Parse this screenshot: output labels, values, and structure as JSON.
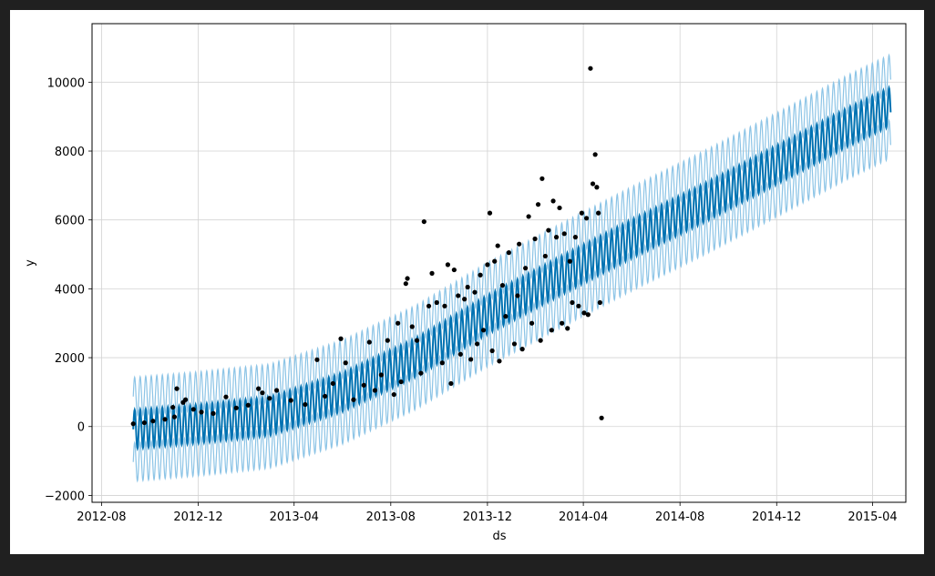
{
  "chart_data": {
    "type": "line",
    "title": "",
    "xlabel": "ds",
    "ylabel": "y",
    "grid": true,
    "legend": "none",
    "xlim": [
      "2012-07-20",
      "2015-05-13"
    ],
    "ylim": [
      -2200,
      11700
    ],
    "x_ticks": [
      "2012-08",
      "2012-12",
      "2013-04",
      "2013-08",
      "2013-12",
      "2014-04",
      "2014-08",
      "2014-12",
      "2015-04"
    ],
    "y_ticks": [
      -2000,
      0,
      2000,
      4000,
      6000,
      8000,
      10000
    ],
    "y_tick_labels": [
      "−2000",
      "0",
      "2000",
      "4000",
      "6000",
      "8000",
      "10000"
    ],
    "colors": {
      "forecast": "#0072b2",
      "interval": "#8cc4e6",
      "observed": "#000000",
      "grid": "#d3d3d3"
    },
    "series": [
      {
        "role": "forecast",
        "style": "line",
        "weekly_period_days": 7,
        "trend": {
          "x": [
            "2012-09-10",
            "2012-12-01",
            "2013-03-01",
            "2013-06-01",
            "2013-09-01",
            "2013-12-01",
            "2014-03-01",
            "2014-06-01",
            "2014-09-01",
            "2014-12-01",
            "2015-03-01",
            "2015-04-24"
          ],
          "y": [
            -80,
            80,
            300,
            1000,
            2000,
            3250,
            4350,
            5450,
            6500,
            7600,
            8700,
            9300
          ]
        },
        "weekly_amplitude": 560
      },
      {
        "role": "uncertainty_interval",
        "style": "band",
        "upper_offset": 950,
        "lower_offset": -950
      },
      {
        "role": "observed",
        "style": "scatter",
        "points": [
          {
            "x": "2012-09-10",
            "y": 80
          },
          {
            "x": "2012-09-24",
            "y": 110
          },
          {
            "x": "2012-10-05",
            "y": 160
          },
          {
            "x": "2012-10-20",
            "y": 210
          },
          {
            "x": "2012-10-30",
            "y": 560
          },
          {
            "x": "2012-11-01",
            "y": 280
          },
          {
            "x": "2012-11-04",
            "y": 1100
          },
          {
            "x": "2012-11-12",
            "y": 700
          },
          {
            "x": "2012-11-15",
            "y": 780
          },
          {
            "x": "2012-11-25",
            "y": 500
          },
          {
            "x": "2012-12-05",
            "y": 420
          },
          {
            "x": "2012-12-20",
            "y": 380
          },
          {
            "x": "2013-01-05",
            "y": 860
          },
          {
            "x": "2013-01-18",
            "y": 540
          },
          {
            "x": "2013-02-02",
            "y": 620
          },
          {
            "x": "2013-02-15",
            "y": 1100
          },
          {
            "x": "2013-02-20",
            "y": 980
          },
          {
            "x": "2013-03-01",
            "y": 820
          },
          {
            "x": "2013-03-10",
            "y": 1050
          },
          {
            "x": "2013-03-28",
            "y": 760
          },
          {
            "x": "2013-04-15",
            "y": 640
          },
          {
            "x": "2013-04-30",
            "y": 1940
          },
          {
            "x": "2013-05-10",
            "y": 880
          },
          {
            "x": "2013-05-20",
            "y": 1250
          },
          {
            "x": "2013-05-30",
            "y": 2550
          },
          {
            "x": "2013-06-05",
            "y": 1850
          },
          {
            "x": "2013-06-15",
            "y": 780
          },
          {
            "x": "2013-06-28",
            "y": 1200
          },
          {
            "x": "2013-07-05",
            "y": 2450
          },
          {
            "x": "2013-07-12",
            "y": 1050
          },
          {
            "x": "2013-07-20",
            "y": 1500
          },
          {
            "x": "2013-07-28",
            "y": 2500
          },
          {
            "x": "2013-08-05",
            "y": 930
          },
          {
            "x": "2013-08-10",
            "y": 3000
          },
          {
            "x": "2013-08-14",
            "y": 1300
          },
          {
            "x": "2013-08-20",
            "y": 4150
          },
          {
            "x": "2013-08-22",
            "y": 4300
          },
          {
            "x": "2013-08-28",
            "y": 2900
          },
          {
            "x": "2013-09-03",
            "y": 2500
          },
          {
            "x": "2013-09-08",
            "y": 1550
          },
          {
            "x": "2013-09-12",
            "y": 5950
          },
          {
            "x": "2013-09-18",
            "y": 3500
          },
          {
            "x": "2013-09-22",
            "y": 4450
          },
          {
            "x": "2013-09-28",
            "y": 3600
          },
          {
            "x": "2013-10-05",
            "y": 1850
          },
          {
            "x": "2013-10-08",
            "y": 3500
          },
          {
            "x": "2013-10-12",
            "y": 4700
          },
          {
            "x": "2013-10-16",
            "y": 1250
          },
          {
            "x": "2013-10-20",
            "y": 4550
          },
          {
            "x": "2013-10-25",
            "y": 3800
          },
          {
            "x": "2013-10-28",
            "y": 2100
          },
          {
            "x": "2013-11-02",
            "y": 3700
          },
          {
            "x": "2013-11-06",
            "y": 4050
          },
          {
            "x": "2013-11-10",
            "y": 1950
          },
          {
            "x": "2013-11-15",
            "y": 3900
          },
          {
            "x": "2013-11-18",
            "y": 2400
          },
          {
            "x": "2013-11-22",
            "y": 4400
          },
          {
            "x": "2013-11-26",
            "y": 2800
          },
          {
            "x": "2013-12-01",
            "y": 4700
          },
          {
            "x": "2013-12-04",
            "y": 6200
          },
          {
            "x": "2013-12-07",
            "y": 2200
          },
          {
            "x": "2013-12-10",
            "y": 4800
          },
          {
            "x": "2013-12-14",
            "y": 5250
          },
          {
            "x": "2013-12-16",
            "y": 1900
          },
          {
            "x": "2013-12-20",
            "y": 4100
          },
          {
            "x": "2013-12-24",
            "y": 3200
          },
          {
            "x": "2013-12-28",
            "y": 5050
          },
          {
            "x": "2014-01-04",
            "y": 2400
          },
          {
            "x": "2014-01-08",
            "y": 3800
          },
          {
            "x": "2014-01-10",
            "y": 5300
          },
          {
            "x": "2014-01-14",
            "y": 2250
          },
          {
            "x": "2014-01-18",
            "y": 4600
          },
          {
            "x": "2014-01-22",
            "y": 6100
          },
          {
            "x": "2014-01-26",
            "y": 3000
          },
          {
            "x": "2014-01-30",
            "y": 5450
          },
          {
            "x": "2014-02-03",
            "y": 6450
          },
          {
            "x": "2014-02-06",
            "y": 2500
          },
          {
            "x": "2014-02-08",
            "y": 7200
          },
          {
            "x": "2014-02-12",
            "y": 4950
          },
          {
            "x": "2014-02-16",
            "y": 5700
          },
          {
            "x": "2014-02-20",
            "y": 2800
          },
          {
            "x": "2014-02-22",
            "y": 6550
          },
          {
            "x": "2014-02-26",
            "y": 5500
          },
          {
            "x": "2014-03-02",
            "y": 6350
          },
          {
            "x": "2014-03-05",
            "y": 3000
          },
          {
            "x": "2014-03-08",
            "y": 5600
          },
          {
            "x": "2014-03-12",
            "y": 2850
          },
          {
            "x": "2014-03-15",
            "y": 4800
          },
          {
            "x": "2014-03-18",
            "y": 3600
          },
          {
            "x": "2014-03-22",
            "y": 5500
          },
          {
            "x": "2014-03-26",
            "y": 3500
          },
          {
            "x": "2014-03-30",
            "y": 6200
          },
          {
            "x": "2014-04-02",
            "y": 3300
          },
          {
            "x": "2014-04-05",
            "y": 6050
          },
          {
            "x": "2014-04-07",
            "y": 3250
          },
          {
            "x": "2014-04-10",
            "y": 10400
          },
          {
            "x": "2014-04-13",
            "y": 7050
          },
          {
            "x": "2014-04-16",
            "y": 7900
          },
          {
            "x": "2014-04-18",
            "y": 6950
          },
          {
            "x": "2014-04-20",
            "y": 6200
          },
          {
            "x": "2014-04-22",
            "y": 3600
          },
          {
            "x": "2014-04-24",
            "y": 250
          }
        ]
      }
    ]
  }
}
